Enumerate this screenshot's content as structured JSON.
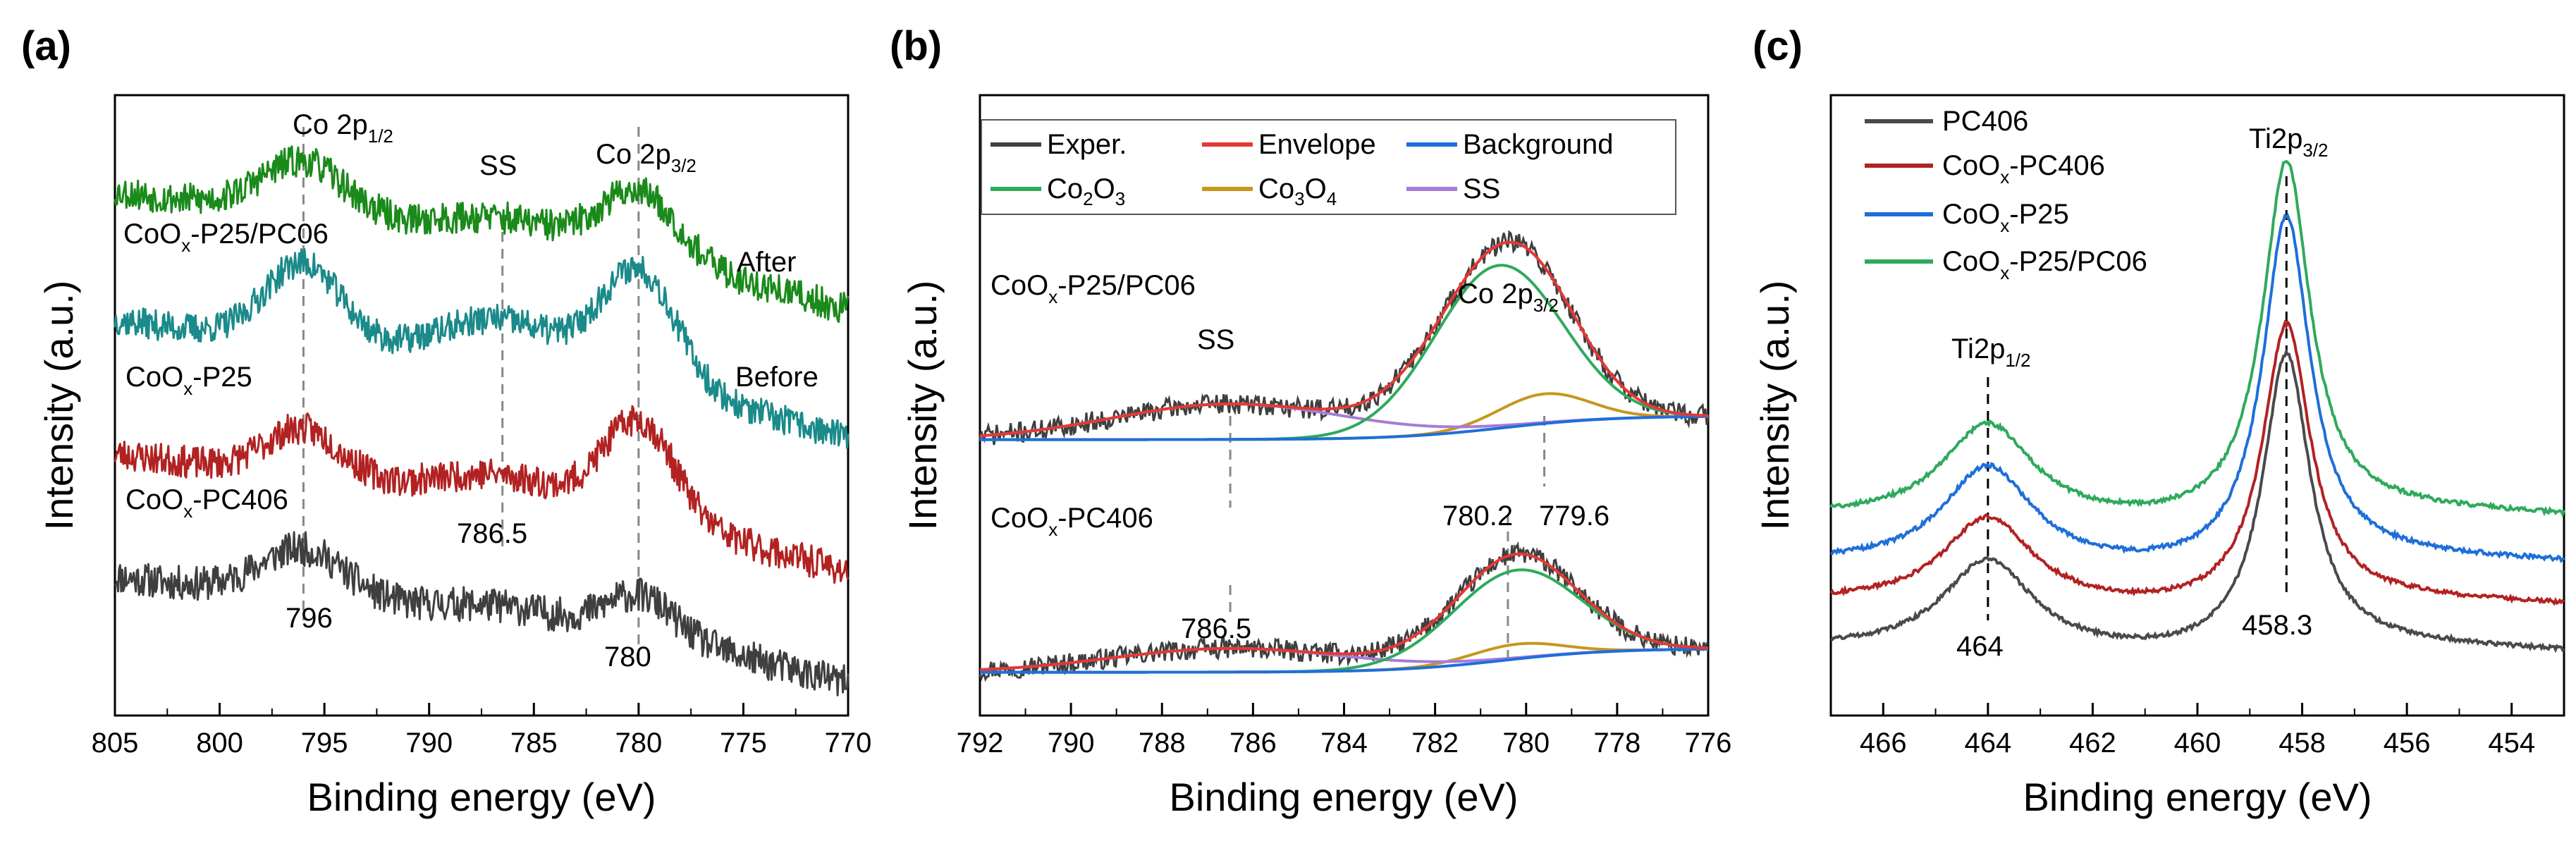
{
  "chart_data": [
    {
      "panel": "a",
      "title": "(a)",
      "type": "line",
      "xlabel": "Binding energy (eV)",
      "ylabel": "Intensity (a.u.)",
      "xlim": [
        805,
        770
      ],
      "ylim": [
        0,
        5.8
      ],
      "xticks": [
        805,
        800,
        795,
        790,
        785,
        780,
        775,
        770
      ],
      "series": [
        {
          "name": "CoOx-PC406",
          "sample": "CoO",
          "sub": "x",
          "suffix": "-PC406",
          "color": "#3f3f3f",
          "offset": 0.45,
          "seed": 11,
          "noise": 0.16,
          "peaks": [
            {
              "c": 796,
              "a": 0.45,
              "w": 2.0
            },
            {
              "c": 786.5,
              "a": 0.12,
              "w": 3
            },
            {
              "c": 780,
              "a": 0.35,
              "w": 1.6
            }
          ],
          "bg": [
            0.1,
            0.75
          ]
        },
        {
          "name": "CoOx-P25",
          "sample": "CoO",
          "sub": "x",
          "suffix": "-P25",
          "color": "#b22222",
          "offset": 1.5,
          "seed": 23,
          "noise": 0.15,
          "peaks": [
            {
              "c": 796,
              "a": 0.45,
              "w": 1.8
            },
            {
              "c": 786.5,
              "a": 0.25,
              "w": 3
            },
            {
              "c": 780,
              "a": 0.9,
              "w": 1.7
            }
          ],
          "bg": [
            0.1,
            0.85
          ]
        },
        {
          "name": "CoOx-P25/PC06 Before",
          "sample": "CoO",
          "sub": "x",
          "suffix": "-P25/PC06",
          "color": "#1b8a8a",
          "offset": 2.75,
          "seed": 37,
          "noise": 0.14,
          "peaks": [
            {
              "c": 796,
              "a": 0.75,
              "w": 1.8
            },
            {
              "c": 786.5,
              "a": 0.45,
              "w": 3
            },
            {
              "c": 780,
              "a": 1.05,
              "w": 1.8
            }
          ],
          "bg": [
            0.1,
            0.85
          ]
        },
        {
          "name": "CoOx-P25/PC06 After",
          "color": "#1a8a1a",
          "offset": 3.95,
          "seed": 53,
          "noise": 0.15,
          "peaks": [
            {
              "c": 796,
              "a": 0.5,
              "w": 2.0
            },
            {
              "c": 786.5,
              "a": 0.2,
              "w": 3
            },
            {
              "c": 780,
              "a": 0.6,
              "w": 1.8
            }
          ],
          "bg": [
            0.1,
            0.85
          ]
        }
      ],
      "vlines": [
        796,
        786.5,
        780
      ],
      "labels": {
        "co2p12": {
          "main": "Co 2p",
          "sub": "1/2"
        },
        "ss": "SS",
        "co2p32": {
          "main": "Co 2p",
          "sub": "3/2"
        },
        "after": "After",
        "before": "Before",
        "v796": "796",
        "v7865": "786.5",
        "v780": "780"
      }
    },
    {
      "panel": "b",
      "title": "(b)",
      "type": "line",
      "xlabel": "Binding energy (eV)",
      "ylabel": "Intensity (a.u.)",
      "xlim": [
        792,
        776
      ],
      "xticks": [
        792,
        790,
        788,
        786,
        784,
        782,
        780,
        778,
        776
      ],
      "legend": [
        {
          "name": "Exper.",
          "color": "#3f3f3f"
        },
        {
          "name": "Envelope",
          "color": "#e53935"
        },
        {
          "name": "Background",
          "color": "#1e6fd9"
        },
        {
          "name": "Co",
          "sub1": "2",
          "mid": "O",
          "sub2": "3",
          "color": "#2eaa5c"
        },
        {
          "name": "Co",
          "sub1": "3",
          "mid": "O",
          "sub2": "4",
          "color": "#c8961e"
        },
        {
          "name": "SS",
          "color": "#a77bd9"
        }
      ],
      "samples": [
        {
          "name": "CoOx-P25/PC06",
          "co2o3": {
            "center": 780.6,
            "height": 0.55
          },
          "co3o4": {
            "center": 779.6,
            "height": 0.1
          },
          "ss": {
            "center": 786.5,
            "height": 0.12
          }
        },
        {
          "name": "CoOx-PC406",
          "co2o3": {
            "center": 780.2,
            "height": 0.3
          },
          "co3o4": {
            "center": 780.2,
            "height": 0.05
          },
          "ss": {
            "center": 786.5,
            "height": 0.08
          }
        }
      ],
      "labels": {
        "top_sample": {
          "main": "CoO",
          "sub": "x",
          "suffix": "-P25/PC06"
        },
        "bot_sample": {
          "main": "CoO",
          "sub": "x",
          "suffix": "-PC406"
        },
        "ss": "SS",
        "co2p32": {
          "main": "Co 2p",
          "sub": "3/2"
        },
        "v7802": "780.2",
        "v7796": "779.6",
        "v7865": "786.5"
      }
    },
    {
      "panel": "c",
      "title": "(c)",
      "type": "line",
      "xlabel": "Binding energy (eV)",
      "ylabel": "Intensity (a.u.)",
      "xlim": [
        467,
        453
      ],
      "xticks": [
        466,
        464,
        462,
        460,
        458,
        456,
        454
      ],
      "series": [
        {
          "name": "PC406",
          "color": "#4a4a4a",
          "offset": 0.0,
          "p12": 1.1,
          "p32": 3.5,
          "tail": 0.25
        },
        {
          "name": "CoOx-PC406",
          "color": "#b22222",
          "offset": 0.55,
          "p12": 1.05,
          "p32": 3.3,
          "tail": 0.25
        },
        {
          "name": "CoOx-P25",
          "color": "#1e6fd9",
          "offset": 1.0,
          "p12": 1.2,
          "p32": 4.1,
          "tail": 0.3
        },
        {
          "name": "CoOx-P25/PC06",
          "color": "#2eaa5c",
          "offset": 1.55,
          "p12": 1.15,
          "p32": 4.2,
          "tail": 0.3
        }
      ],
      "legend": [
        {
          "text": "PC406",
          "color": "#4a4a4a"
        },
        {
          "main": "CoO",
          "sub": "x",
          "suffix": "-PC406",
          "color": "#b22222"
        },
        {
          "main": "CoO",
          "sub": "x",
          "suffix": "-P25",
          "color": "#1e6fd9"
        },
        {
          "main": "CoO",
          "sub": "x",
          "suffix": "-P25/PC06",
          "color": "#2eaa5c"
        }
      ],
      "peaks": {
        "ti2p12": 464,
        "ti2p32": 458.3
      },
      "labels": {
        "ti2p32": {
          "main": "Ti2p",
          "sub": "3/2"
        },
        "ti2p12": {
          "main": "Ti2p",
          "sub": "1/2"
        },
        "v464": "464",
        "v4583": "458.3"
      }
    }
  ]
}
